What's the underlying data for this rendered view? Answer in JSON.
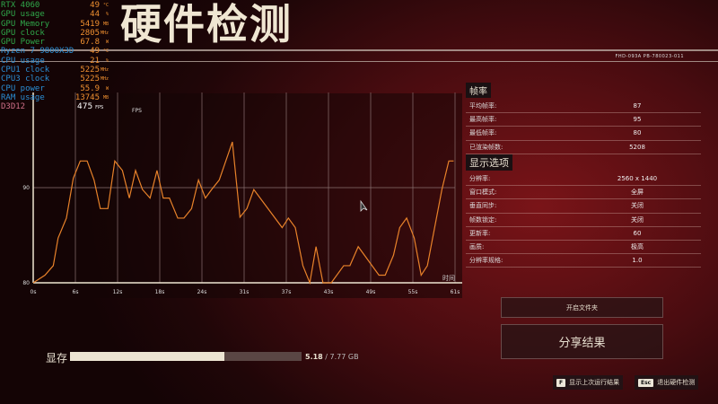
{
  "title": "硬件检测",
  "build_code": "FHD-093A PB-780023-011",
  "osd": [
    {
      "label": "RTX 4060",
      "value": "49",
      "unit": "°C",
      "color": "g"
    },
    {
      "label": "GPU usage",
      "value": "44",
      "unit": "%",
      "color": "g"
    },
    {
      "label": "GPU Memory",
      "value": "5419",
      "unit": "MB",
      "color": "g"
    },
    {
      "label": "GPU  clock",
      "value": "2805",
      "unit": "MHz",
      "color": "g"
    },
    {
      "label": "GPU Power",
      "value": "67.8",
      "unit": "W",
      "color": "g"
    },
    {
      "label": "Ryzen 7 9800X3D",
      "value": "49",
      "unit": "°C",
      "color": "b"
    },
    {
      "label": "CPU usage",
      "value": "21",
      "unit": "%",
      "color": "b"
    },
    {
      "label": "CPU1 clock",
      "value": "5225",
      "unit": "MHz",
      "color": "b"
    },
    {
      "label": "CPU3 clock",
      "value": "5225",
      "unit": "MHz",
      "color": "b"
    },
    {
      "label": "CPU power",
      "value": "55.9",
      "unit": "W",
      "color": "b"
    },
    {
      "label": "RAM usage",
      "value": "13745",
      "unit": "MB",
      "color": "b"
    },
    {
      "label": "D3D12",
      "value": "",
      "unit": "",
      "color": "p"
    }
  ],
  "osd_fps": {
    "value": "475",
    "unit": "FPS"
  },
  "chart_data": {
    "type": "line",
    "ylabel": "FPS",
    "xlabel": "时间",
    "ylim": [
      80,
      100
    ],
    "xlim": [
      0,
      61
    ],
    "yticks": [
      80,
      90
    ],
    "xticks": [
      "0s",
      "6s",
      "12s",
      "18s",
      "24s",
      "31s",
      "37s",
      "43s",
      "49s",
      "55s",
      "61s"
    ],
    "grid": true,
    "color": "#e8822a",
    "x": [
      0,
      1.7,
      2.9,
      3.6,
      4.8,
      5.8,
      6.8,
      7.8,
      8.8,
      9.7,
      10.8,
      11.8,
      12.9,
      13.9,
      14.8,
      15.8,
      16.9,
      17.9,
      18.8,
      19.7,
      20.9,
      21.8,
      22.9,
      23.9,
      24.9,
      25.8,
      26.9,
      28.8,
      29.9,
      30.9,
      31.9,
      36,
      36.9,
      37.9,
      39,
      40,
      40.9,
      41.9,
      43.1,
      44.9,
      45.8,
      47,
      50,
      50.9,
      52.1,
      53,
      54,
      55.1,
      56.1,
      57,
      59.1,
      60.1,
      60.8
    ],
    "y": [
      80,
      80.8,
      81.8,
      84.7,
      86.8,
      91,
      92.8,
      92.8,
      90.8,
      87.8,
      87.8,
      92.8,
      91.8,
      88.9,
      91.8,
      89.8,
      88.9,
      91.8,
      88.9,
      88.9,
      86.8,
      86.8,
      87.8,
      90.8,
      88.9,
      89.8,
      90.8,
      94.8,
      86.9,
      87.8,
      89.8,
      85.8,
      86.8,
      85.8,
      81.8,
      80,
      83.8,
      80,
      80,
      81.8,
      81.8,
      83.8,
      80.8,
      80.8,
      82.9,
      85.8,
      86.8,
      84.7,
      80.8,
      81.8,
      89.8,
      92.8,
      92.8
    ]
  },
  "framerate": {
    "heading": "帧率",
    "rows": [
      {
        "label": "平均帧率:",
        "value": "87"
      },
      {
        "label": "最高帧率:",
        "value": "95"
      },
      {
        "label": "最低帧率:",
        "value": "80"
      },
      {
        "label": "已渲染帧数:",
        "value": "5208"
      }
    ]
  },
  "display": {
    "heading": "显示选项",
    "rows": [
      {
        "label": "分辨率:",
        "value": "2560 x 1440"
      },
      {
        "label": "窗口模式:",
        "value": "全屏"
      },
      {
        "label": "垂直同步:",
        "value": "关闭"
      },
      {
        "label": "帧数锁定:",
        "value": "关闭"
      },
      {
        "label": "更新率:",
        "value": "60"
      },
      {
        "label": "画质:",
        "value": "极高"
      },
      {
        "label": "分辨率规格:",
        "value": "1.0"
      }
    ]
  },
  "vram": {
    "label": "显存",
    "used": "5.18",
    "total": "/ 7.77 GB",
    "fraction": 0.667
  },
  "buttons": {
    "open_folder": "开启文件夹",
    "share": "分享结果"
  },
  "hints": [
    {
      "key": "F",
      "label": "显示上次运行结果"
    },
    {
      "key": "Esc",
      "label": "退出硬件检测"
    }
  ]
}
